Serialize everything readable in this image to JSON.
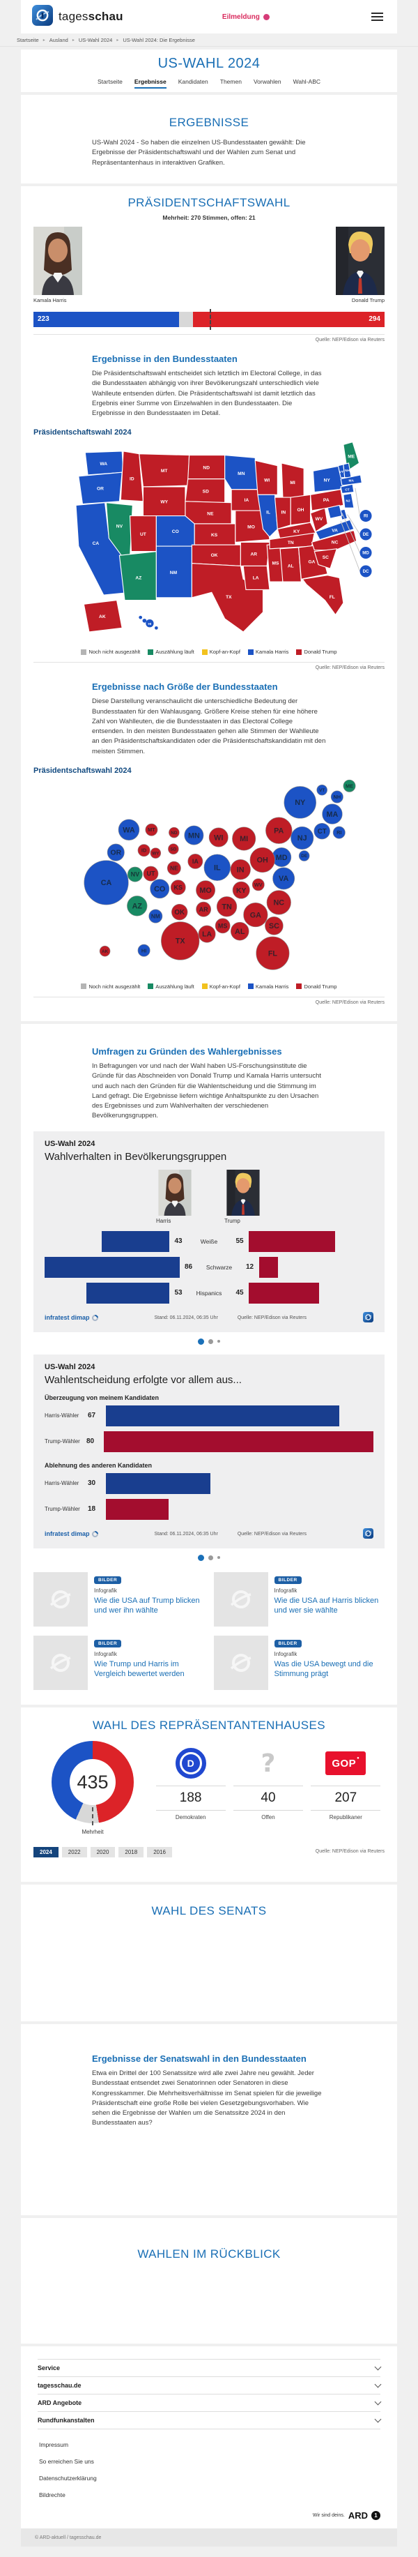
{
  "colors": {
    "harris": "#1c53c5",
    "trump": "#bf1d26",
    "counting": "#188a63",
    "none": "#b4b4b4",
    "tied": "#f2c21e",
    "bar_red": "#dc2328",
    "open_gray": "#d8d8d8",
    "chart_navy": "#193e8f",
    "chart_darkred": "#a30d2e",
    "accent": "#1a6fb5",
    "dem": "#2048d0",
    "gop": "#e8112d"
  },
  "header": {
    "brand_light": "tages",
    "brand_bold": "schau",
    "alert": "Eilmeldung"
  },
  "breadcrumb": [
    "Startseite",
    "Ausland",
    "US-Wahl 2024",
    "US-Wahl 2024: Die Ergebnisse"
  ],
  "hero": {
    "title": "US-WAHL 2024",
    "tabs": [
      {
        "label": "Startseite",
        "active": false
      },
      {
        "label": "Ergebnisse",
        "active": true
      },
      {
        "label": "Kandidaten",
        "active": false
      },
      {
        "label": "Themen",
        "active": false
      },
      {
        "label": "Vorwahlen",
        "active": false
      },
      {
        "label": "Wahl-ABC",
        "active": false
      }
    ]
  },
  "intro": {
    "title": "ERGEBNISSE",
    "text": "US-Wahl 2024 - So haben die einzelnen US-Bundesstaaten gewählt: Die Ergebnisse der Präsidentschaftswahl und der Wahlen zum Senat und Repräsentantenhaus in interaktiven Grafiken."
  },
  "president": {
    "title": "PRÄSIDENTSCHAFTSWAHL",
    "majority_note": "Mehrheit: 270 Stimmen, offen: 21",
    "harris": {
      "name": "Kamala Harris",
      "votes": 223
    },
    "trump": {
      "name": "Donald Trump",
      "votes": 294
    },
    "open_votes": 21,
    "total_votes": 538,
    "majority": 270,
    "source": "Quelle: NEP/Edison via Reuters"
  },
  "states_section": {
    "heading": "Ergebnisse in den Bundesstaaten",
    "text": "Die Präsidentschaftswahl entscheidet sich letztlich im Electoral College, in das die Bundesstaaten abhängig von ihrer Bevölkerungszahl unterschiedlich viele Wahlleute entsenden dürfen. Die Präsidentschaftswahl ist damit letztlich das Ergebnis einer Summe von Einzelwahlen in den Bundesstaaten. Die Ergebnisse in den Bundesstaaten im Detail.",
    "map_title": "Präsidentschaftswahl 2024",
    "source": "Quelle: NEP/Edison via Reuters"
  },
  "size_section": {
    "heading": "Ergebnisse nach Größe der Bundesstaaten",
    "text": "Diese Darstellung veranschaulicht die unterschiedliche Bedeutung der Bundesstaaten für den Wahlausgang. Größere Kreise stehen für eine höhere Zahl von Wahlleuten, die die Bundesstaaten in das Electoral College entsenden. In den meisten Bundesstaaten gehen alle Stimmen der Wahlleute an den Präsidentschaftskandidaten oder die Präsidentschaftskandidatin mit den meisten Stimmen.",
    "map_title": "Präsidentschaftswahl 2024",
    "source": "Quelle: NEP/Edison via Reuters"
  },
  "legend": [
    {
      "key": "none",
      "label": "Noch nicht ausgezählt",
      "color": "#b4b4b4"
    },
    {
      "key": "counting",
      "label": "Auszählung läuft",
      "color": "#188a63"
    },
    {
      "key": "tied",
      "label": "Kopf-an-Kopf",
      "color": "#f2c21e"
    },
    {
      "key": "harris",
      "label": "Kamala Harris",
      "color": "#1c53c5"
    },
    {
      "key": "trump",
      "label": "Donald Trump",
      "color": "#bf1d26"
    }
  ],
  "states": [
    {
      "id": "AL",
      "ev": 9,
      "result": "trump"
    },
    {
      "id": "AK",
      "ev": 3,
      "result": "trump"
    },
    {
      "id": "AZ",
      "ev": 11,
      "result": "counting"
    },
    {
      "id": "AR",
      "ev": 6,
      "result": "trump"
    },
    {
      "id": "CA",
      "ev": 54,
      "result": "harris"
    },
    {
      "id": "CO",
      "ev": 10,
      "result": "harris"
    },
    {
      "id": "CT",
      "ev": 7,
      "result": "harris"
    },
    {
      "id": "DE",
      "ev": 3,
      "result": "harris"
    },
    {
      "id": "DC",
      "ev": 3,
      "result": "harris"
    },
    {
      "id": "FL",
      "ev": 30,
      "result": "trump"
    },
    {
      "id": "GA",
      "ev": 16,
      "result": "trump"
    },
    {
      "id": "HI",
      "ev": 4,
      "result": "harris"
    },
    {
      "id": "ID",
      "ev": 4,
      "result": "trump"
    },
    {
      "id": "IL",
      "ev": 19,
      "result": "harris"
    },
    {
      "id": "IN",
      "ev": 11,
      "result": "trump"
    },
    {
      "id": "IA",
      "ev": 6,
      "result": "trump"
    },
    {
      "id": "KS",
      "ev": 6,
      "result": "trump"
    },
    {
      "id": "KY",
      "ev": 8,
      "result": "trump"
    },
    {
      "id": "LA",
      "ev": 8,
      "result": "trump"
    },
    {
      "id": "ME",
      "ev": 4,
      "result": "counting"
    },
    {
      "id": "MD",
      "ev": 10,
      "result": "harris"
    },
    {
      "id": "MA",
      "ev": 11,
      "result": "harris"
    },
    {
      "id": "MI",
      "ev": 15,
      "result": "trump"
    },
    {
      "id": "MN",
      "ev": 10,
      "result": "harris"
    },
    {
      "id": "MS",
      "ev": 6,
      "result": "trump"
    },
    {
      "id": "MO",
      "ev": 10,
      "result": "trump"
    },
    {
      "id": "MT",
      "ev": 4,
      "result": "trump"
    },
    {
      "id": "NE",
      "ev": 5,
      "result": "trump"
    },
    {
      "id": "NV",
      "ev": 6,
      "result": "counting"
    },
    {
      "id": "NH",
      "ev": 4,
      "result": "harris"
    },
    {
      "id": "NJ",
      "ev": 14,
      "result": "harris"
    },
    {
      "id": "NM",
      "ev": 5,
      "result": "harris"
    },
    {
      "id": "NY",
      "ev": 28,
      "result": "harris"
    },
    {
      "id": "NC",
      "ev": 16,
      "result": "trump"
    },
    {
      "id": "ND",
      "ev": 3,
      "result": "trump"
    },
    {
      "id": "OH",
      "ev": 17,
      "result": "trump"
    },
    {
      "id": "OK",
      "ev": 7,
      "result": "trump"
    },
    {
      "id": "OR",
      "ev": 8,
      "result": "harris"
    },
    {
      "id": "PA",
      "ev": 19,
      "result": "trump"
    },
    {
      "id": "RI",
      "ev": 4,
      "result": "harris"
    },
    {
      "id": "SC",
      "ev": 9,
      "result": "trump"
    },
    {
      "id": "SD",
      "ev": 3,
      "result": "trump"
    },
    {
      "id": "TN",
      "ev": 11,
      "result": "trump"
    },
    {
      "id": "TX",
      "ev": 40,
      "result": "trump"
    },
    {
      "id": "UT",
      "ev": 6,
      "result": "trump"
    },
    {
      "id": "VT",
      "ev": 3,
      "result": "harris"
    },
    {
      "id": "VA",
      "ev": 13,
      "result": "harris"
    },
    {
      "id": "WA",
      "ev": 12,
      "result": "harris"
    },
    {
      "id": "WV",
      "ev": 4,
      "result": "trump"
    },
    {
      "id": "WI",
      "ev": 10,
      "result": "trump"
    },
    {
      "id": "WY",
      "ev": 3,
      "result": "trump"
    }
  ],
  "polls_intro": {
    "heading": "Umfragen zu Gründen des Wahlergebnisses",
    "text": "In Befragungen vor und nach der Wahl haben US-Forschungsinstitute die Gründe für das Abschneiden von Donald Trump und Kamala Harris untersucht und auch nach den Gründen für die Wahlentscheidung und die Stimmung im Land gefragt. Die Ergebnisse liefern wichtige Anhaltspunkte zu den Ursachen des Ergebnisses und zum Wahlverhalten der verschiedenen Bevölkerungsgruppen."
  },
  "chart1": {
    "kicker": "US-Wahl 2024",
    "title": "Wahlverhalten in Bevölkerungsgruppen",
    "left_label": "Harris",
    "right_label": "Trump",
    "rows": [
      {
        "label": "Weiße",
        "harris": 43,
        "trump": 55
      },
      {
        "label": "Schwarze",
        "harris": 86,
        "trump": 12
      },
      {
        "label": "Hispanics",
        "harris": 53,
        "trump": 45
      }
    ],
    "footer": {
      "brand": "infratest dimap",
      "stand": "Stand: 06.11.2024, 06:35 Uhr",
      "source": "Quelle: NEP/Edison via Reuters"
    }
  },
  "chart2": {
    "kicker": "US-Wahl 2024",
    "title": "Wahlentscheidung erfolgte vor allem aus...",
    "groups": [
      {
        "label": "Überzeugung von meinem Kandidaten",
        "rows": [
          {
            "label": "Harris-Wähler",
            "value": 67,
            "who": "harris"
          },
          {
            "label": "Trump-Wähler",
            "value": 80,
            "who": "trump"
          }
        ]
      },
      {
        "label": "Ablehnung des anderen Kandidaten",
        "rows": [
          {
            "label": "Harris-Wähler",
            "value": 30,
            "who": "harris"
          },
          {
            "label": "Trump-Wähler",
            "value": 18,
            "who": "trump"
          }
        ]
      }
    ],
    "footer": {
      "brand": "infratest dimap",
      "stand": "Stand: 06.11.2024, 06:35 Uhr",
      "source": "Quelle: NEP/Edison via Reuters"
    }
  },
  "carousel": {
    "dots": 3,
    "active": 0
  },
  "teasers": [
    {
      "badge": "BILDER",
      "kicker": "Infografik",
      "title": "Wie die USA auf Trump blicken und wer ihn wählte"
    },
    {
      "badge": "BILDER",
      "kicker": "Infografik",
      "title": "Wie die USA auf Harris blicken und wer sie wählte"
    },
    {
      "badge": "BILDER",
      "kicker": "Infografik",
      "title": "Wie Trump und Harris im Vergleich bewertet werden"
    },
    {
      "badge": "BILDER",
      "kicker": "Infografik",
      "title": "Was die USA bewegt und die Stimmung prägt"
    }
  ],
  "house": {
    "title": "WAHL DES REPRÄSENTANTENHAUSES",
    "total": 435,
    "majority_label": "Mehrheit",
    "dem": {
      "value": 188,
      "label": "Demokraten"
    },
    "open": {
      "value": 40,
      "label": "Offen"
    },
    "rep": {
      "value": 207,
      "label": "Republikaner"
    },
    "gop_text": "GOP",
    "dem_letter": "D",
    "open_glyph": "?",
    "years": [
      "2024",
      "2022",
      "2020",
      "2018",
      "2016"
    ],
    "active_year": "2024",
    "source": "Quelle: NEP/Edison via Reuters"
  },
  "senate": {
    "title": "WAHL DES SENATS"
  },
  "senate_states": {
    "heading": "Ergebnisse der Senatswahl in den Bundesstaaten",
    "text": "Etwa ein Drittel der 100 Senatssitze wird alle zwei Jahre neu gewählt. Jeder Bundesstaat entsendet zwei Senatorinnen oder Senatoren in diese Kongresskammer. Die Mehrheitsverhältnisse im Senat spielen für die jeweilige Präsidentschaft eine große Rolle bei vielen Gesetzgebungsvorhaben. Wie sehen die Ergebnisse der Wahlen um die Senatssitze 2024 in den Bundesstaaten aus?"
  },
  "review": {
    "title": "WAHLEN IM RÜCKBLICK"
  },
  "footer": {
    "accordions": [
      "Service",
      "tagesschau.de",
      "ARD Angebote",
      "Rundfunkanstalten"
    ],
    "links": [
      "Impressum",
      "So erreichen Sie uns",
      "Datenschutzerklärung",
      "Bildrechte"
    ],
    "ard_claim": "Wir sind deins.",
    "ard": "ARD",
    "ard_one": "1",
    "copyright": "© ARD-aktuell / tagesschau.de"
  },
  "chart_data": [
    {
      "type": "bar",
      "title": "Electoral College Ergebnis",
      "categories": [
        "Kamala Harris",
        "offen",
        "Donald Trump"
      ],
      "values": [
        223,
        21,
        294
      ],
      "majority": 270,
      "total": 538
    },
    {
      "type": "map",
      "title": "Präsidentschaftswahl 2024 - Ergebnisse in den Bundesstaaten",
      "legend": [
        "Noch nicht ausgezählt",
        "Auszählung läuft",
        "Kopf-an-Kopf",
        "Kamala Harris",
        "Donald Trump"
      ],
      "note": "Ergebnis je Bundesstaat im Feld states"
    },
    {
      "type": "bubble-map",
      "title": "Präsidentschaftswahl 2024 - Ergebnisse nach Größe der Bundesstaaten",
      "note": "Kreisfläche proportional zur Zahl der Wahlleute (ev) je Bundesstaat, Feld states"
    },
    {
      "type": "bar",
      "title": "Wahlverhalten in Bevölkerungsgruppen",
      "categories": [
        "Weiße",
        "Schwarze",
        "Hispanics"
      ],
      "series": [
        {
          "name": "Harris",
          "values": [
            43,
            86,
            53
          ]
        },
        {
          "name": "Trump",
          "values": [
            55,
            12,
            45
          ]
        }
      ]
    },
    {
      "type": "bar",
      "title": "Wahlentscheidung erfolgte vor allem aus...",
      "categories": [
        "Überzeugung von meinem Kandidaten",
        "Ablehnung des anderen Kandidaten"
      ],
      "series": [
        {
          "name": "Harris-Wähler",
          "values": [
            67,
            30
          ]
        },
        {
          "name": "Trump-Wähler",
          "values": [
            80,
            18
          ]
        }
      ]
    },
    {
      "type": "donut",
      "title": "Wahl des Repräsentantenhauses",
      "categories": [
        "Demokraten",
        "Offen",
        "Republikaner"
      ],
      "values": [
        188,
        40,
        207
      ],
      "total": 435
    }
  ]
}
